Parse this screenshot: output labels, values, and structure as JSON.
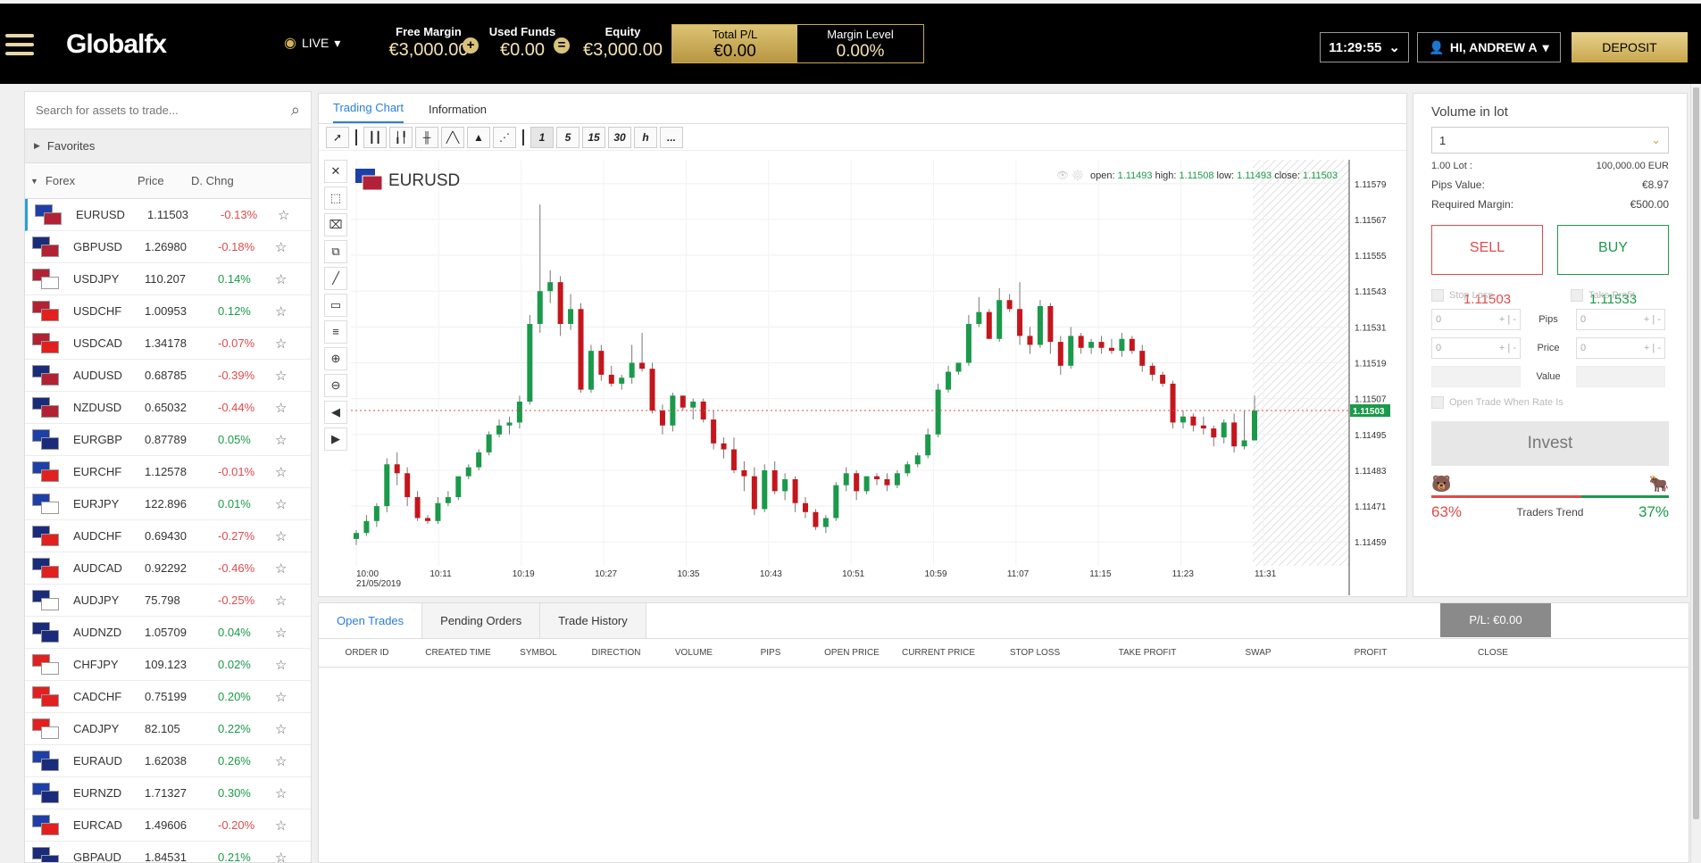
{
  "header": {
    "brand": "Globalfx",
    "mode": "LIVE",
    "free_margin_label": "Free Margin",
    "free_margin": "€3,000.00",
    "used_funds_label": "Used Funds",
    "used_funds": "€0.00",
    "equity_label": "Equity",
    "equity": "€3,000.00",
    "plus_op": "+",
    "eq_op": "=",
    "total_pl_label": "Total P/L",
    "total_pl": "€0.00",
    "margin_level_label": "Margin Level",
    "margin_level": "0.00%",
    "time": "11:29:55",
    "user": "HI, ANDREW A",
    "deposit": "DEPOSIT"
  },
  "search": {
    "placeholder": "Search for assets to trade..."
  },
  "favorites": "Favorites",
  "list_header": {
    "group": "Forex",
    "price": "Price",
    "change": "D. Chng"
  },
  "assets": [
    {
      "sym": "EURUSD",
      "price": "1.11503",
      "chg": "-0.13%",
      "pdir": "n",
      "cdir": "dn",
      "f1": "#1f3fa8",
      "f2": "#b22234"
    },
    {
      "sym": "GBPUSD",
      "price": "1.26980",
      "chg": "-0.18%",
      "pdir": "n",
      "cdir": "dn",
      "f1": "#1b2b7b",
      "f2": "#b22234"
    },
    {
      "sym": "USDJPY",
      "price": "110.207",
      "chg": "0.14%",
      "pdir": "n",
      "cdir": "up",
      "f1": "#b22234",
      "f2": "#ffffff"
    },
    {
      "sym": "USDCHF",
      "price": "1.00953",
      "chg": "0.12%",
      "pdir": "n",
      "cdir": "up",
      "f1": "#b22234",
      "f2": "#e22020"
    },
    {
      "sym": "USDCAD",
      "price": "1.34178",
      "chg": "-0.07%",
      "pdir": "n",
      "cdir": "dn",
      "f1": "#b22234",
      "f2": "#e22020"
    },
    {
      "sym": "AUDUSD",
      "price": "0.68785",
      "chg": "-0.39%",
      "pdir": "up",
      "cdir": "dn",
      "f1": "#1b2b7b",
      "f2": "#b22234"
    },
    {
      "sym": "NZDUSD",
      "price": "0.65032",
      "chg": "-0.44%",
      "pdir": "n",
      "cdir": "dn",
      "f1": "#1b2b7b",
      "f2": "#b22234"
    },
    {
      "sym": "EURGBP",
      "price": "0.87789",
      "chg": "0.05%",
      "pdir": "n",
      "cdir": "up",
      "f1": "#1f3fa8",
      "f2": "#1b2b7b"
    },
    {
      "sym": "EURCHF",
      "price": "1.12578",
      "chg": "-0.01%",
      "pdir": "n",
      "cdir": "dn",
      "f1": "#1f3fa8",
      "f2": "#e22020"
    },
    {
      "sym": "EURJPY",
      "price": "122.896",
      "chg": "0.01%",
      "pdir": "n",
      "cdir": "up",
      "f1": "#1f3fa8",
      "f2": "#ffffff"
    },
    {
      "sym": "AUDCHF",
      "price": "0.69430",
      "chg": "-0.27%",
      "pdir": "n",
      "cdir": "dn",
      "f1": "#1b2b7b",
      "f2": "#e22020"
    },
    {
      "sym": "AUDCAD",
      "price": "0.92292",
      "chg": "-0.46%",
      "pdir": "n",
      "cdir": "dn",
      "f1": "#1b2b7b",
      "f2": "#e22020"
    },
    {
      "sym": "AUDJPY",
      "price": "75.798",
      "chg": "-0.25%",
      "pdir": "n",
      "cdir": "dn",
      "f1": "#1b2b7b",
      "f2": "#ffffff"
    },
    {
      "sym": "AUDNZD",
      "price": "1.05709",
      "chg": "0.04%",
      "pdir": "n",
      "cdir": "up",
      "f1": "#1b2b7b",
      "f2": "#1b2b7b"
    },
    {
      "sym": "CHFJPY",
      "price": "109.123",
      "chg": "0.02%",
      "pdir": "n",
      "cdir": "up",
      "f1": "#e22020",
      "f2": "#ffffff"
    },
    {
      "sym": "CADCHF",
      "price": "0.75199",
      "chg": "0.20%",
      "pdir": "n",
      "cdir": "up",
      "f1": "#e22020",
      "f2": "#e22020"
    },
    {
      "sym": "CADJPY",
      "price": "82.105",
      "chg": "0.22%",
      "pdir": "n",
      "cdir": "up",
      "f1": "#e22020",
      "f2": "#ffffff"
    },
    {
      "sym": "EURAUD",
      "price": "1.62038",
      "chg": "0.26%",
      "pdir": "n",
      "cdir": "up",
      "f1": "#1f3fa8",
      "f2": "#1b2b7b"
    },
    {
      "sym": "EURNZD",
      "price": "1.71327",
      "chg": "0.30%",
      "pdir": "n",
      "cdir": "up",
      "f1": "#1f3fa8",
      "f2": "#1b2b7b"
    },
    {
      "sym": "EURCAD",
      "price": "1.49606",
      "chg": "-0.20%",
      "pdir": "n",
      "cdir": "dn",
      "f1": "#1f3fa8",
      "f2": "#e22020"
    },
    {
      "sym": "GBPAUD",
      "price": "1.84531",
      "chg": "0.21%",
      "pdir": "dn",
      "cdir": "up",
      "f1": "#1b2b7b",
      "f2": "#1b2b7b"
    }
  ],
  "tabs": {
    "chart": "Trading Chart",
    "info": "Information"
  },
  "timeframes": [
    "1",
    "5",
    "15",
    "30",
    "h",
    "..."
  ],
  "chart_data": {
    "type": "candlestick",
    "symbol": "EURUSD",
    "ohlc_label": {
      "open_l": "open:",
      "open": "1.11493",
      "high_l": "high:",
      "high": "1.11508",
      "low_l": "low:",
      "low": "1.11493",
      "close_l": "close:",
      "close": "1.11503"
    },
    "yticks": [
      "1.11579",
      "1.11567",
      "1.11555",
      "1.11543",
      "1.11531",
      "1.11519",
      "1.11507",
      "1.11495",
      "1.11483",
      "1.11471",
      "1.11459"
    ],
    "ylim": [
      1.11451,
      1.11587
    ],
    "xticks": [
      "10:00",
      "10:11",
      "10:19",
      "10:27",
      "10:35",
      "10:43",
      "10:51",
      "10:59",
      "11:07",
      "11:15",
      "11:23",
      "11:31"
    ],
    "xdate": "21/05/2019",
    "current": "1.11503",
    "current_value": 1.11503,
    "candles": [
      [
        1.1146,
        1.11463,
        1.11458,
        1.11462
      ],
      [
        1.11462,
        1.11468,
        1.11461,
        1.11466
      ],
      [
        1.11466,
        1.11472,
        1.11464,
        1.11471
      ],
      [
        1.11471,
        1.11487,
        1.11469,
        1.11485
      ],
      [
        1.11485,
        1.11489,
        1.11478,
        1.11482
      ],
      [
        1.11482,
        1.11484,
        1.11471,
        1.11474
      ],
      [
        1.11474,
        1.11476,
        1.11466,
        1.11467
      ],
      [
        1.11467,
        1.11468,
        1.11465,
        1.11466
      ],
      [
        1.11466,
        1.11474,
        1.11465,
        1.11472
      ],
      [
        1.11472,
        1.11476,
        1.11471,
        1.11474
      ],
      [
        1.11474,
        1.1148,
        1.11473,
        1.11481
      ],
      [
        1.11481,
        1.11485,
        1.1148,
        1.11484
      ],
      [
        1.11484,
        1.1149,
        1.11483,
        1.11489
      ],
      [
        1.11489,
        1.11496,
        1.11488,
        1.11495
      ],
      [
        1.11495,
        1.115,
        1.11494,
        1.11498
      ],
      [
        1.11498,
        1.11501,
        1.11495,
        1.11499
      ],
      [
        1.11499,
        1.11508,
        1.11497,
        1.11506
      ],
      [
        1.11506,
        1.11535,
        1.11505,
        1.11532
      ],
      [
        1.11532,
        1.11572,
        1.11529,
        1.11543
      ],
      [
        1.11543,
        1.1155,
        1.11539,
        1.11546
      ],
      [
        1.11546,
        1.11548,
        1.11528,
        1.11532
      ],
      [
        1.11532,
        1.11542,
        1.1153,
        1.11537
      ],
      [
        1.11537,
        1.11539,
        1.11509,
        1.1151
      ],
      [
        1.1151,
        1.11525,
        1.11509,
        1.11523
      ],
      [
        1.11523,
        1.11525,
        1.11513,
        1.11515
      ],
      [
        1.11515,
        1.11518,
        1.11511,
        1.11512
      ],
      [
        1.11512,
        1.11515,
        1.1151,
        1.11514
      ],
      [
        1.11514,
        1.11525,
        1.11512,
        1.11519
      ],
      [
        1.11519,
        1.11529,
        1.11516,
        1.11517
      ],
      [
        1.11517,
        1.11519,
        1.11502,
        1.11503
      ],
      [
        1.11503,
        1.11505,
        1.11495,
        1.11498
      ],
      [
        1.11498,
        1.11509,
        1.11496,
        1.11508
      ],
      [
        1.11508,
        1.11508,
        1.11503,
        1.11504
      ],
      [
        1.11504,
        1.11507,
        1.115,
        1.11506
      ],
      [
        1.11506,
        1.11507,
        1.11499,
        1.115
      ],
      [
        1.115,
        1.11503,
        1.1149,
        1.11492
      ],
      [
        1.11492,
        1.11494,
        1.11487,
        1.1149
      ],
      [
        1.1149,
        1.11494,
        1.11482,
        1.11483
      ],
      [
        1.11483,
        1.11486,
        1.11476,
        1.11481
      ],
      [
        1.11481,
        1.11484,
        1.11468,
        1.1147
      ],
      [
        1.1147,
        1.11485,
        1.11469,
        1.11483
      ],
      [
        1.11483,
        1.11486,
        1.11475,
        1.11476
      ],
      [
        1.11476,
        1.11482,
        1.11473,
        1.1148
      ],
      [
        1.1148,
        1.11481,
        1.11469,
        1.11472
      ],
      [
        1.11472,
        1.11474,
        1.11467,
        1.11469
      ],
      [
        1.11469,
        1.1147,
        1.11463,
        1.11464
      ],
      [
        1.11464,
        1.11468,
        1.11462,
        1.11467
      ],
      [
        1.11467,
        1.11479,
        1.11466,
        1.11478
      ],
      [
        1.11478,
        1.11484,
        1.11476,
        1.11482
      ],
      [
        1.11482,
        1.11483,
        1.11473,
        1.11476
      ],
      [
        1.11476,
        1.11481,
        1.11475,
        1.11481
      ],
      [
        1.11481,
        1.11482,
        1.11478,
        1.1148
      ],
      [
        1.1148,
        1.11482,
        1.11476,
        1.11478
      ],
      [
        1.11478,
        1.11483,
        1.11477,
        1.11482
      ],
      [
        1.11482,
        1.11486,
        1.11481,
        1.11485
      ],
      [
        1.11485,
        1.11489,
        1.11484,
        1.11488
      ],
      [
        1.11488,
        1.11497,
        1.11487,
        1.11495
      ],
      [
        1.11495,
        1.11512,
        1.11494,
        1.1151
      ],
      [
        1.1151,
        1.11518,
        1.11509,
        1.11516
      ],
      [
        1.11516,
        1.11519,
        1.11515,
        1.11519
      ],
      [
        1.11519,
        1.11535,
        1.11518,
        1.11532
      ],
      [
        1.11532,
        1.11541,
        1.11531,
        1.11536
      ],
      [
        1.11536,
        1.11537,
        1.11527,
        1.11527
      ],
      [
        1.11527,
        1.11544,
        1.11526,
        1.1154
      ],
      [
        1.1154,
        1.11542,
        1.11536,
        1.11537
      ],
      [
        1.11537,
        1.11546,
        1.11525,
        1.11528
      ],
      [
        1.11528,
        1.11531,
        1.11522,
        1.11525
      ],
      [
        1.11525,
        1.1154,
        1.11524,
        1.11538
      ],
      [
        1.11538,
        1.11539,
        1.11522,
        1.11526
      ],
      [
        1.11526,
        1.11528,
        1.11515,
        1.11518
      ],
      [
        1.11518,
        1.11531,
        1.11517,
        1.11528
      ],
      [
        1.11528,
        1.11529,
        1.11522,
        1.11524
      ],
      [
        1.11524,
        1.11527,
        1.11522,
        1.11526
      ],
      [
        1.11526,
        1.11528,
        1.11522,
        1.11524
      ],
      [
        1.11524,
        1.11527,
        1.11522,
        1.11523
      ],
      [
        1.11523,
        1.11529,
        1.11521,
        1.11527
      ],
      [
        1.11527,
        1.11528,
        1.11522,
        1.11523
      ],
      [
        1.11523,
        1.11525,
        1.11516,
        1.11518
      ],
      [
        1.11518,
        1.11519,
        1.11513,
        1.11515
      ],
      [
        1.11515,
        1.11516,
        1.11511,
        1.11512
      ],
      [
        1.11512,
        1.11513,
        1.11497,
        1.11499
      ],
      [
        1.11499,
        1.11503,
        1.11497,
        1.11501
      ],
      [
        1.11501,
        1.11502,
        1.11496,
        1.11498
      ],
      [
        1.11498,
        1.11501,
        1.11495,
        1.11497
      ],
      [
        1.11497,
        1.11498,
        1.11491,
        1.11494
      ],
      [
        1.11494,
        1.115,
        1.11492,
        1.11499
      ],
      [
        1.11499,
        1.11502,
        1.11489,
        1.11491
      ],
      [
        1.11491,
        1.11503,
        1.1149,
        1.11493
      ],
      [
        1.11493,
        1.11508,
        1.11493,
        1.11503
      ]
    ]
  },
  "bottom": {
    "tabs": [
      "Open Trades",
      "Pending Orders",
      "Trade History"
    ],
    "pl": "P/L: €0.00",
    "columns": [
      "ORDER ID",
      "CREATED TIME",
      "SYMBOL",
      "DIRECTION",
      "VOLUME",
      "PIPS",
      "OPEN PRICE",
      "CURRENT PRICE",
      "STOP LOSS",
      "TAKE PROFIT",
      "SWAP",
      "PROFIT",
      "CLOSE"
    ]
  },
  "order": {
    "volume_label": "Volume in lot",
    "volume": "1",
    "lot_l": "1.00 Lot :",
    "lot_v": "100,000.00 EUR",
    "pips_l": "Pips Value:",
    "pips_v": "€8.97",
    "margin_l": "Required Margin:",
    "margin_v": "€500.00",
    "sell_l": "SELL",
    "sell": "1.11503",
    "buy_l": "BUY",
    "buy": "1.11533",
    "stop_loss": "Stop Loss",
    "take_profit": "Take Profit",
    "pips": "Pips",
    "price": "Price",
    "value": "Value",
    "zero": "0",
    "plus": "+",
    "minus": "-",
    "open_when": "Open Trade When Rate Is",
    "invest": "Invest",
    "sell_pct": "63%",
    "trend": "Traders Trend",
    "buy_pct": "37%",
    "sell_share": 63,
    "buy_share": 37,
    "red": "#e04b4b",
    "green": "#1a9a4a"
  }
}
